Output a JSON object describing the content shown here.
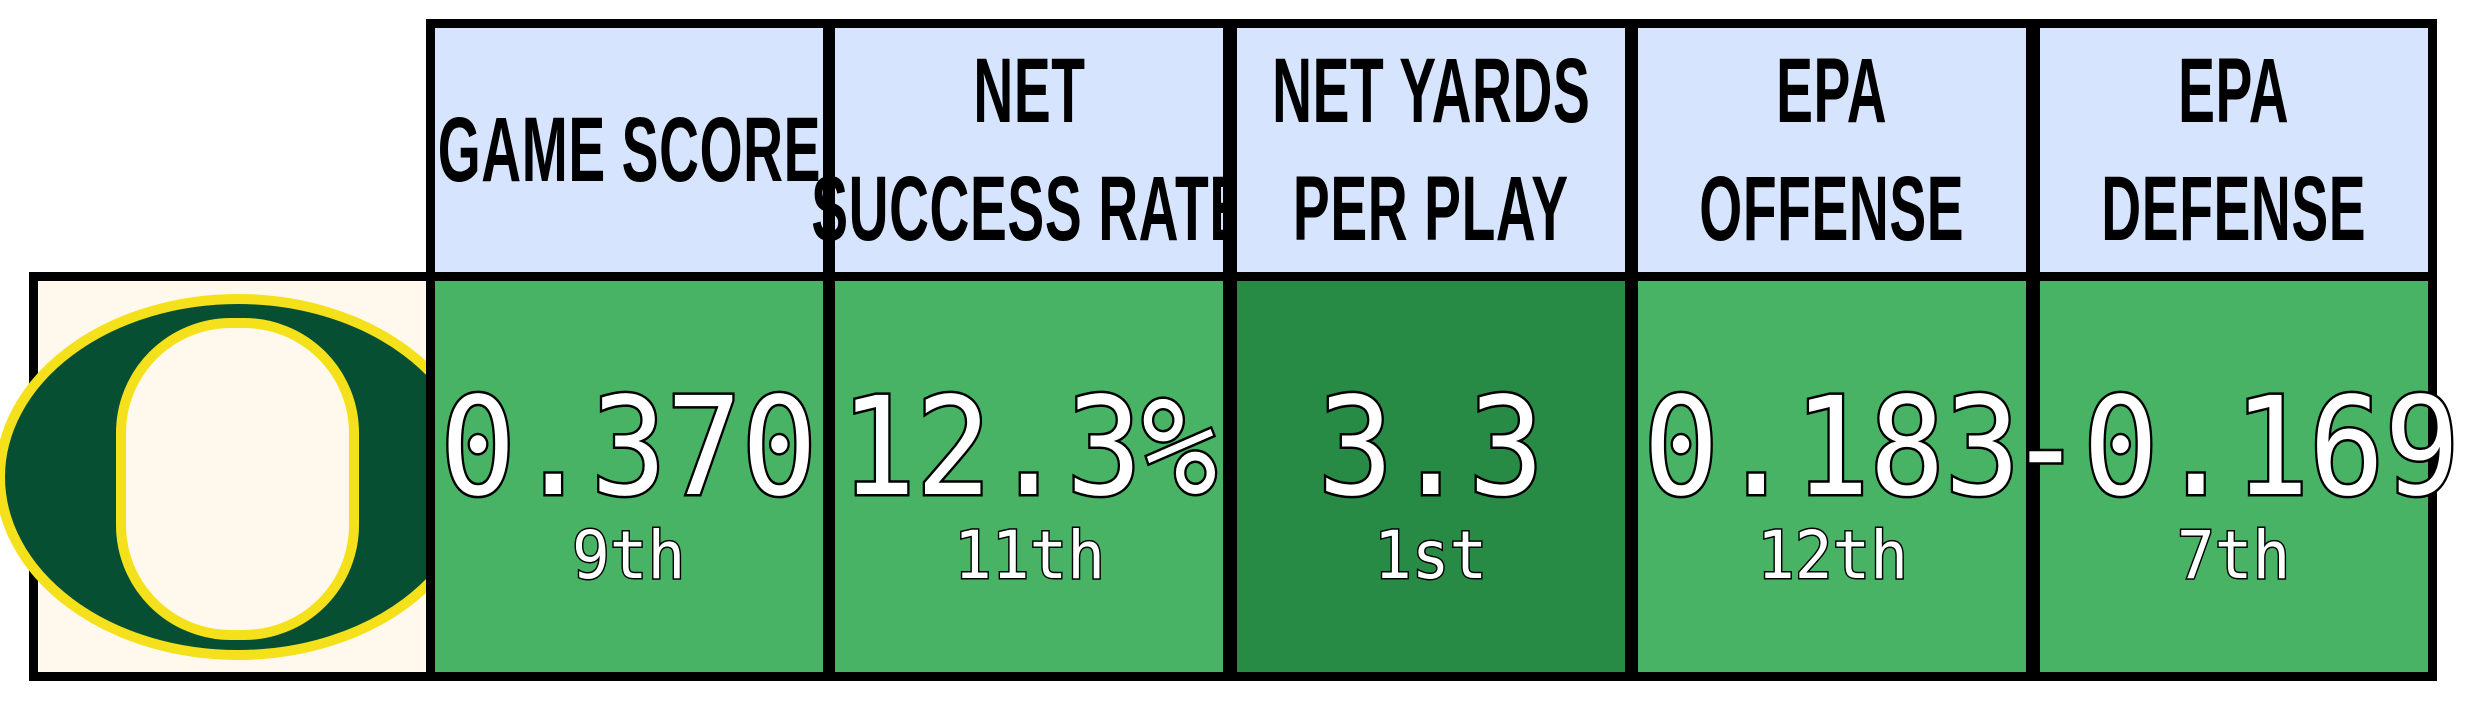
{
  "team_logo": {
    "icon": "oregon-o-logo-icon",
    "outer_color": "#074f33",
    "outline_color": "#f5e11b",
    "inner_color": "#fff8ec"
  },
  "colors": {
    "header_fill": "#d6e4fd",
    "border": "#000000",
    "value_text": "#ffffff"
  },
  "stats": [
    {
      "header_lines": [
        "GAME SCORE"
      ],
      "value": "0.370",
      "rank": "9th",
      "cell_color": "#48b365"
    },
    {
      "header_lines": [
        "NET",
        "SUCCESS RATE"
      ],
      "value": "12.3%",
      "rank": "11th",
      "cell_color": "#48b365"
    },
    {
      "header_lines": [
        "NET YARDS",
        "PER PLAY"
      ],
      "value": "3.3",
      "rank": "1st",
      "cell_color": "#288b45"
    },
    {
      "header_lines": [
        "EPA",
        "OFFENSE"
      ],
      "value": "0.183",
      "rank": "12th",
      "cell_color": "#48b365"
    },
    {
      "header_lines": [
        "EPA",
        "DEFENSE"
      ],
      "value": "-0.169",
      "rank": "7th",
      "cell_color": "#48b365"
    }
  ]
}
